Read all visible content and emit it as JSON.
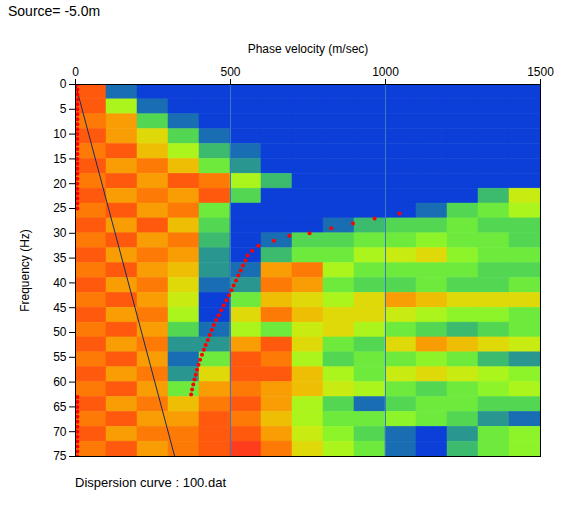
{
  "chart_data": {
    "type": "heatmap",
    "title": "Source= -5.0m",
    "caption": "Dispersion curve : 100.dat",
    "x_label": "Phase velocity (m/sec)",
    "y_label": "Frequency (Hz)",
    "xlim": [
      0,
      1500
    ],
    "xticks": [
      0,
      500,
      1000,
      1500
    ],
    "ylim": [
      0,
      75
    ],
    "yticks": [
      0,
      5,
      10,
      15,
      20,
      25,
      30,
      35,
      40,
      45,
      50,
      55,
      60,
      65,
      70,
      75
    ],
    "grid": true,
    "cells": {
      "x_bins": [
        0,
        100,
        200,
        300,
        400,
        500,
        600,
        700,
        800,
        900,
        1000,
        1100,
        1200,
        1300,
        1400,
        1500
      ],
      "y_bins": [
        0,
        3,
        6,
        9,
        12,
        15,
        18,
        21,
        24,
        27,
        30,
        33,
        36,
        39,
        42,
        45,
        48,
        51,
        54,
        57,
        60,
        63,
        66,
        69,
        72,
        75
      ],
      "values": [
        [
          0.3,
          0.9,
          0.95,
          0.95,
          0.95,
          0.95,
          0.95,
          0.95,
          0.95,
          0.95,
          0.95,
          0.95,
          0.95,
          0.95,
          0.95
        ],
        [
          0.3,
          0.6,
          0.9,
          0.95,
          0.95,
          0.95,
          0.95,
          0.95,
          0.95,
          0.95,
          0.95,
          0.95,
          0.95,
          0.95,
          0.95
        ],
        [
          0.35,
          0.4,
          0.75,
          0.9,
          0.95,
          0.95,
          0.95,
          0.95,
          0.95,
          0.95,
          0.95,
          0.95,
          0.95,
          0.95,
          0.95
        ],
        [
          0.3,
          0.4,
          0.5,
          0.75,
          0.9,
          0.95,
          0.95,
          0.95,
          0.95,
          0.95,
          0.95,
          0.95,
          0.95,
          0.95,
          0.95
        ],
        [
          0.35,
          0.3,
          0.45,
          0.6,
          0.8,
          0.9,
          0.95,
          0.95,
          0.95,
          0.95,
          0.95,
          0.95,
          0.95,
          0.95,
          0.95
        ],
        [
          0.3,
          0.4,
          0.35,
          0.45,
          0.7,
          0.85,
          0.95,
          0.95,
          0.95,
          0.95,
          0.95,
          0.95,
          0.95,
          0.95,
          0.95
        ],
        [
          0.35,
          0.3,
          0.4,
          0.3,
          0.35,
          0.6,
          0.8,
          0.95,
          0.95,
          0.95,
          0.95,
          0.95,
          0.95,
          0.95,
          0.95
        ],
        [
          0.3,
          0.4,
          0.35,
          0.4,
          0.3,
          0.75,
          0.95,
          0.95,
          0.95,
          0.95,
          0.95,
          0.95,
          0.95,
          0.8,
          0.55
        ],
        [
          0.35,
          0.3,
          0.4,
          0.35,
          0.7,
          0.95,
          0.95,
          0.95,
          0.95,
          0.95,
          0.95,
          0.9,
          0.75,
          0.7,
          0.6
        ],
        [
          0.3,
          0.4,
          0.3,
          0.45,
          0.75,
          0.95,
          0.95,
          0.95,
          0.9,
          0.8,
          0.75,
          0.75,
          0.7,
          0.75,
          0.75
        ],
        [
          0.35,
          0.3,
          0.4,
          0.35,
          0.8,
          0.95,
          0.9,
          0.75,
          0.75,
          0.7,
          0.7,
          0.65,
          0.7,
          0.7,
          0.75
        ],
        [
          0.3,
          0.4,
          0.35,
          0.4,
          0.85,
          0.95,
          0.8,
          0.7,
          0.7,
          0.6,
          0.55,
          0.5,
          0.65,
          0.7,
          0.7
        ],
        [
          0.35,
          0.3,
          0.4,
          0.45,
          0.85,
          0.9,
          0.4,
          0.35,
          0.6,
          0.7,
          0.7,
          0.7,
          0.7,
          0.75,
          0.75
        ],
        [
          0.3,
          0.4,
          0.35,
          0.5,
          0.9,
          0.85,
          0.35,
          0.4,
          0.7,
          0.75,
          0.75,
          0.7,
          0.75,
          0.75,
          0.7
        ],
        [
          0.35,
          0.3,
          0.4,
          0.55,
          0.95,
          0.7,
          0.45,
          0.5,
          0.6,
          0.5,
          0.4,
          0.45,
          0.5,
          0.5,
          0.5
        ],
        [
          0.3,
          0.4,
          0.35,
          0.6,
          0.95,
          0.5,
          0.35,
          0.45,
          0.5,
          0.5,
          0.55,
          0.6,
          0.65,
          0.65,
          0.7
        ],
        [
          0.35,
          0.3,
          0.4,
          0.75,
          0.9,
          0.6,
          0.7,
          0.55,
          0.5,
          0.6,
          0.7,
          0.75,
          0.8,
          0.75,
          0.7
        ],
        [
          0.3,
          0.4,
          0.35,
          0.85,
          0.85,
          0.4,
          0.3,
          0.5,
          0.7,
          0.75,
          0.5,
          0.4,
          0.45,
          0.5,
          0.55
        ],
        [
          0.35,
          0.3,
          0.4,
          0.9,
          0.7,
          0.3,
          0.35,
          0.6,
          0.75,
          0.7,
          0.7,
          0.65,
          0.7,
          0.8,
          0.85
        ],
        [
          0.3,
          0.4,
          0.35,
          0.85,
          0.5,
          0.3,
          0.3,
          0.45,
          0.6,
          0.7,
          0.55,
          0.5,
          0.55,
          0.6,
          0.65
        ],
        [
          0.35,
          0.3,
          0.4,
          0.7,
          0.4,
          0.35,
          0.4,
          0.45,
          0.55,
          0.6,
          0.7,
          0.75,
          0.7,
          0.65,
          0.6
        ],
        [
          0.3,
          0.4,
          0.35,
          0.45,
          0.35,
          0.3,
          0.4,
          0.6,
          0.75,
          0.9,
          0.75,
          0.7,
          0.7,
          0.75,
          0.75
        ],
        [
          0.35,
          0.3,
          0.4,
          0.4,
          0.3,
          0.35,
          0.45,
          0.6,
          0.7,
          0.7,
          0.65,
          0.7,
          0.75,
          0.85,
          0.9
        ],
        [
          0.3,
          0.4,
          0.35,
          0.35,
          0.3,
          0.3,
          0.4,
          0.55,
          0.65,
          0.75,
          0.9,
          0.95,
          0.85,
          0.7,
          0.65
        ],
        [
          0.35,
          0.3,
          0.4,
          0.35,
          0.3,
          0.25,
          0.35,
          0.5,
          0.6,
          0.7,
          0.9,
          0.95,
          0.8,
          0.7,
          0.65
        ]
      ]
    },
    "zlim": [
      0,
      1
    ],
    "points": {
      "color": "#ff0000",
      "marker": "circle",
      "x": [
        6,
        6,
        6,
        6,
        6,
        6,
        6,
        6,
        6,
        6,
        6,
        6,
        6,
        6,
        6,
        6,
        6,
        6,
        6,
        6,
        6,
        6,
        6,
        6,
        6,
        6,
        1045,
        965,
        895,
        825,
        755,
        690,
        640,
        590,
        570,
        555,
        548,
        540,
        533,
        525,
        518,
        510,
        503,
        495,
        487,
        478,
        470,
        462,
        454,
        446,
        440,
        433,
        427,
        420,
        414,
        408,
        402,
        397,
        392,
        388,
        384,
        380,
        376,
        373,
        6,
        6,
        6,
        6,
        6,
        6,
        6,
        6,
        6,
        6,
        6,
        6,
        6
      ],
      "y": [
        0,
        1,
        2,
        3,
        4,
        5,
        6,
        7,
        8,
        9,
        10,
        11,
        12,
        13,
        14,
        15,
        16,
        17,
        18,
        19,
        20,
        21,
        22,
        23,
        24,
        25,
        26,
        27,
        28,
        29,
        30,
        30.5,
        31.5,
        32.5,
        33.5,
        34.5,
        35.5,
        36.5,
        37.5,
        38.5,
        39.5,
        40.5,
        41.5,
        42.5,
        43.5,
        44.5,
        45.5,
        46.5,
        47.5,
        48.5,
        49.5,
        50.5,
        51.5,
        52.5,
        53.5,
        54.5,
        55.5,
        56.5,
        57.5,
        58.5,
        59.5,
        60.5,
        61.5,
        62.5,
        63,
        64,
        65,
        66,
        67,
        68,
        69,
        70,
        71,
        72,
        73,
        74,
        75
      ]
    },
    "line": {
      "x": [
        0,
        320
      ],
      "y": [
        0,
        75
      ],
      "color": "#1c2a5a",
      "line_style": "solid"
    }
  }
}
